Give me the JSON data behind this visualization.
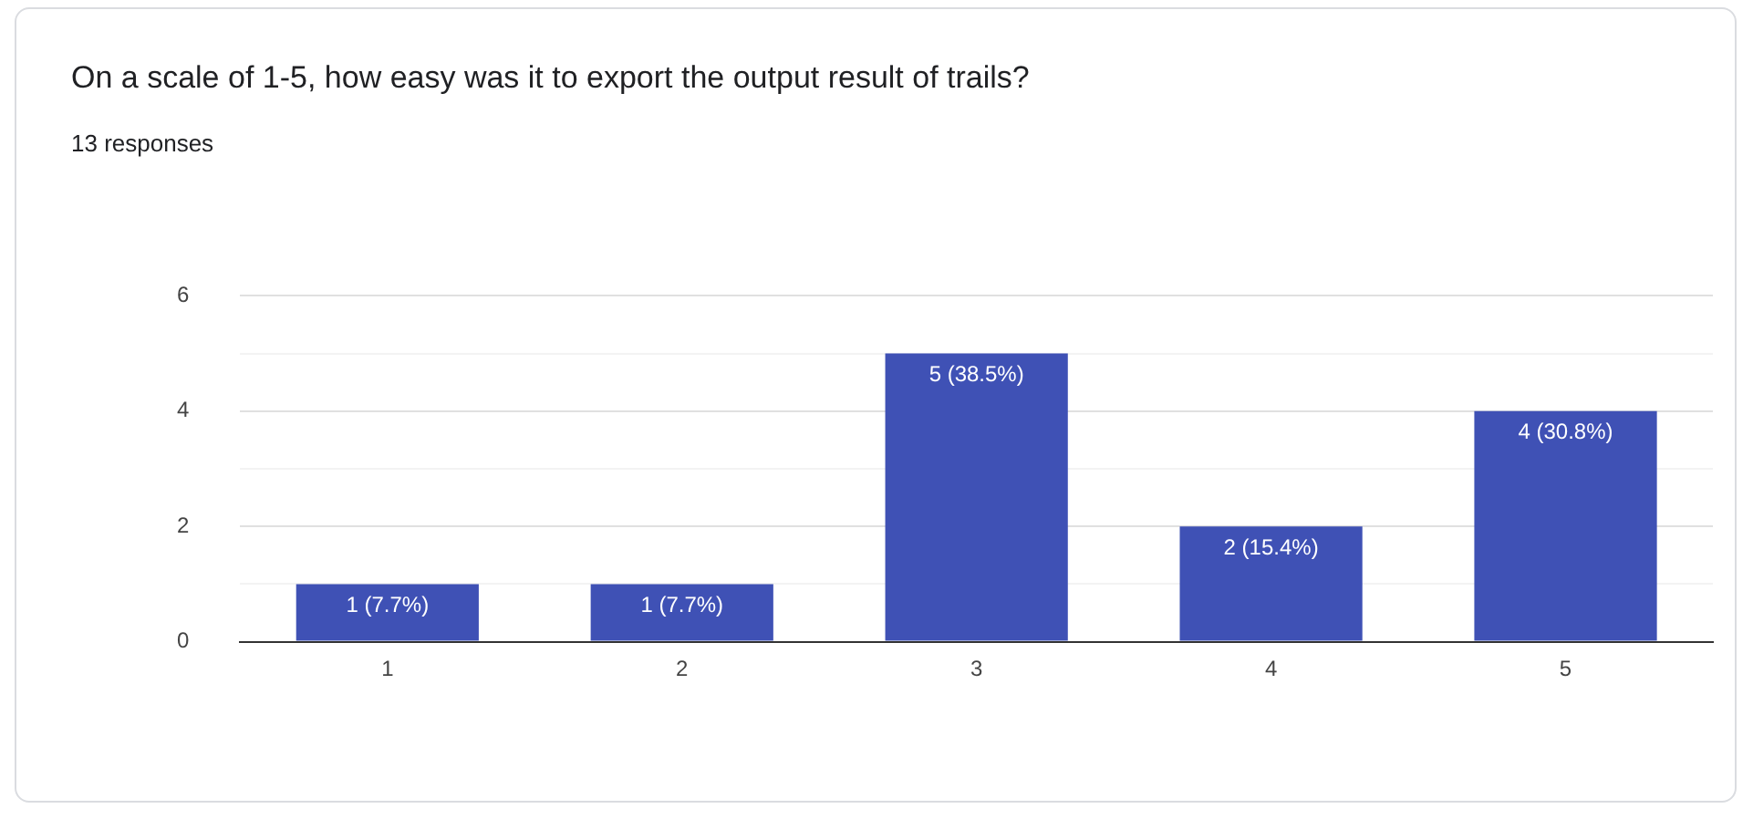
{
  "chart_data": {
    "type": "bar",
    "title": "On a scale of 1-5, how easy was it to export the output result of trails?",
    "subtitle": "13 responses",
    "categories": [
      "1",
      "2",
      "3",
      "4",
      "5"
    ],
    "values": [
      1,
      1,
      5,
      2,
      4
    ],
    "value_labels": [
      "1 (7.7%)",
      "1 (7.7%)",
      "5 (38.5%)",
      "2 (15.4%)",
      "4 (30.8%)"
    ],
    "color": "#3f51b5",
    "ylim": [
      0,
      6
    ],
    "yticks": [
      0,
      {
        "value": 1,
        "label": null
      },
      2,
      {
        "value": 3,
        "label": null
      },
      4,
      {
        "value": 5,
        "label": null
      },
      6
    ],
    "grid": "y",
    "legend": false
  }
}
